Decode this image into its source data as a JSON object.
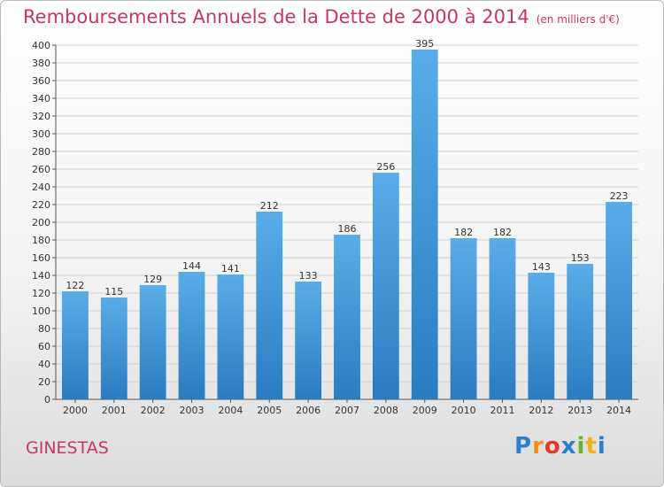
{
  "header": {
    "title": "Remboursements Annuels de la Dette de 2000 à 2014",
    "unit": "(en milliers d'€)"
  },
  "footer": {
    "town": "GINESTAS",
    "logo": "Proxiti"
  },
  "chart_data": {
    "type": "bar",
    "title": "Remboursements Annuels de la Dette de 2000 à 2014",
    "unit": "(en milliers d'€)",
    "categories": [
      "2000",
      "2001",
      "2002",
      "2003",
      "2004",
      "2005",
      "2006",
      "2007",
      "2008",
      "2009",
      "2010",
      "2011",
      "2012",
      "2013",
      "2014"
    ],
    "values": [
      122,
      115,
      129,
      144,
      141,
      212,
      133,
      186,
      256,
      395,
      182,
      182,
      143,
      153,
      223
    ],
    "ylim": [
      0,
      400
    ],
    "yticks": [
      0,
      20,
      40,
      60,
      80,
      100,
      120,
      140,
      160,
      180,
      200,
      220,
      240,
      260,
      280,
      300,
      320,
      340,
      360,
      380,
      400
    ],
    "grid": "horizontal",
    "colors": {
      "bar_top": "#5aade8",
      "bar_bottom": "#2a7cc0",
      "grid": "#cfcfcf",
      "title": "#c2386a"
    }
  }
}
